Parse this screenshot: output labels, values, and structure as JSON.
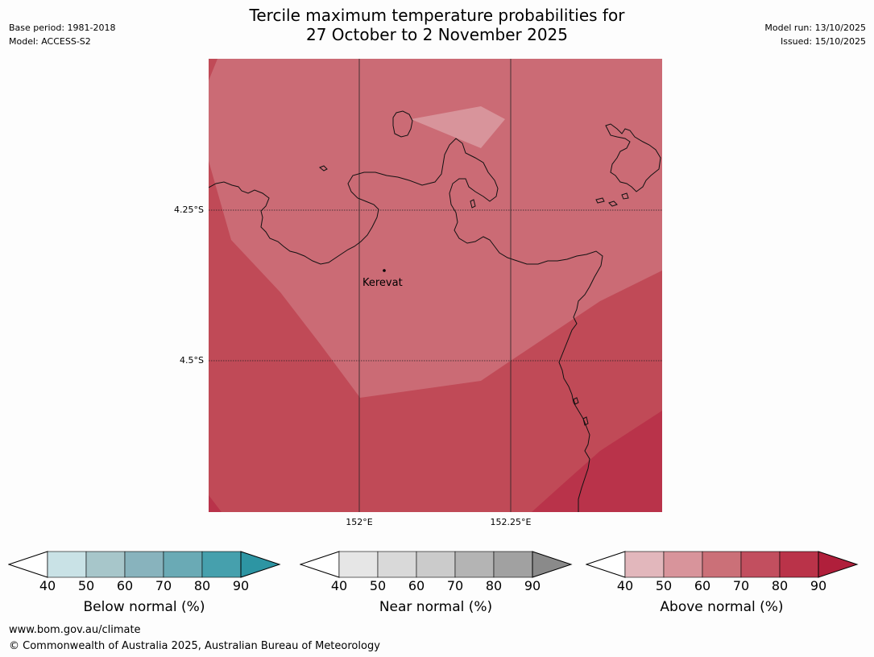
{
  "title_line1": "Tercile maximum temperature probabilities for",
  "title_line2": "27 October to 2 November 2025",
  "meta_left": {
    "base_period": "Base period: 1981-2018",
    "model": "Model: ACCESS-S2"
  },
  "meta_right": {
    "model_run": "Model run: 13/10/2025",
    "issued": "Issued: 15/10/2025"
  },
  "map": {
    "lat_labels": [
      "4.25°S",
      "4.5°S"
    ],
    "lon_labels": [
      "152°E",
      "152.25°E"
    ],
    "place": "Kerevat",
    "colors": {
      "above_50_60": "#d8949b",
      "above_60_70": "#cb6b75",
      "above_70_80": "#c04a57",
      "above_80_90": "#b9334a"
    }
  },
  "colorbars": [
    {
      "title": "Below normal (%)",
      "ticks": [
        "40",
        "50",
        "60",
        "70",
        "80",
        "90"
      ],
      "colors": [
        "#c9e2e6",
        "#a7c6ca",
        "#88b3bd",
        "#6aaab5",
        "#46a0ad",
        "#2d95a3"
      ]
    },
    {
      "title": "Near normal (%)",
      "ticks": [
        "40",
        "50",
        "60",
        "70",
        "80",
        "90"
      ],
      "colors": [
        "#e6e6e6",
        "#d9d9d9",
        "#cbcbcb",
        "#b4b4b4",
        "#a1a1a1",
        "#8a8a8a"
      ]
    },
    {
      "title": "Above normal (%)",
      "ticks": [
        "40",
        "50",
        "60",
        "70",
        "80",
        "90"
      ],
      "colors": [
        "#e2b7bc",
        "#d8949b",
        "#cb7078",
        "#c24f5f",
        "#ba3349",
        "#b01f3b"
      ]
    }
  ],
  "footer": {
    "url": "www.bom.gov.au/climate",
    "copyright": "© Commonwealth of Australia 2025, Australian Bureau of Meteorology"
  }
}
